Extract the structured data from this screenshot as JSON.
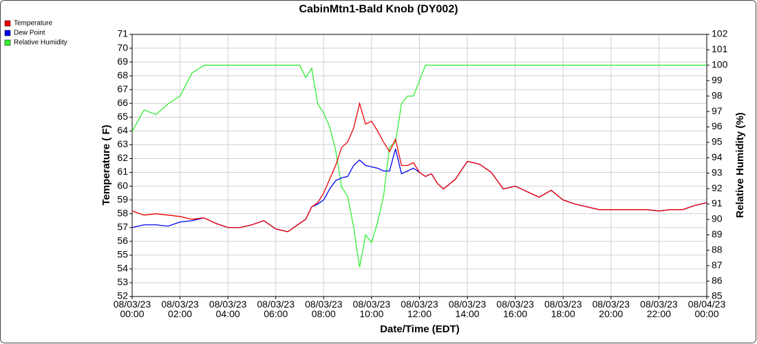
{
  "chart_data": {
    "type": "line",
    "title": "CabinMtn1-Bald Knob (DY002)",
    "x_label": "Date/Time (EDT)",
    "y_label": "Temperature ( F)",
    "y2_label": "Relative Humidity (%)",
    "x": [
      0,
      0.5,
      1,
      1.5,
      2,
      2.5,
      3,
      3.5,
      4,
      4.5,
      5,
      5.5,
      6,
      6.5,
      7,
      7.25,
      7.5,
      7.75,
      8,
      8.25,
      8.5,
      8.75,
      9,
      9.25,
      9.5,
      9.75,
      10,
      10.25,
      10.5,
      10.75,
      11,
      11.25,
      11.5,
      11.75,
      12,
      12.25,
      12.5,
      12.75,
      13,
      13.5,
      14,
      14.5,
      15,
      15.5,
      16,
      16.5,
      17,
      17.5,
      18,
      18.5,
      19,
      19.5,
      20,
      20.5,
      21,
      21.5,
      22,
      22.5,
      23,
      23.5,
      24
    ],
    "xlim": [
      0,
      24
    ],
    "xticks": [
      {
        "value": 0,
        "label": "08/03/23\n00:00"
      },
      {
        "value": 2,
        "label": "08/03/23\n02:00"
      },
      {
        "value": 4,
        "label": "08/03/23\n04:00"
      },
      {
        "value": 6,
        "label": "08/03/23\n06:00"
      },
      {
        "value": 8,
        "label": "08/03/23\n08:00"
      },
      {
        "value": 10,
        "label": "08/03/23\n10:00"
      },
      {
        "value": 12,
        "label": "08/03/23\n12:00"
      },
      {
        "value": 14,
        "label": "08/03/23\n14:00"
      },
      {
        "value": 16,
        "label": "08/03/23\n16:00"
      },
      {
        "value": 18,
        "label": "08/03/23\n18:00"
      },
      {
        "value": 20,
        "label": "08/03/23\n20:00"
      },
      {
        "value": 22,
        "label": "08/03/23\n22:00"
      },
      {
        "value": 24,
        "label": "08/04/23\n00:00"
      }
    ],
    "ylim": [
      52,
      71
    ],
    "yticks": [
      52,
      53,
      54,
      55,
      56,
      57,
      58,
      59,
      60,
      61,
      62,
      63,
      64,
      65,
      66,
      67,
      68,
      69,
      70,
      71
    ],
    "y2lim": [
      85,
      102
    ],
    "y2ticks": [
      85,
      86,
      87,
      88,
      89,
      90,
      91,
      92,
      93,
      94,
      95,
      96,
      97,
      98,
      99,
      100,
      101,
      102
    ],
    "grid": true,
    "legend": "top-left",
    "series": [
      {
        "name": "Relative Humidity",
        "color": "#33ee33",
        "axis": "y2",
        "values": [
          95.7,
          97.1,
          96.8,
          97.5,
          98.0,
          99.5,
          100,
          100,
          100,
          100,
          100,
          100,
          100,
          100,
          100,
          99.2,
          99.8,
          97.5,
          96.9,
          96.0,
          94.5,
          92.1,
          91.5,
          89.5,
          86.9,
          89.0,
          88.5,
          89.8,
          91.5,
          94.7,
          95.0,
          97.5,
          98.0,
          98.0,
          99.0,
          100,
          100,
          100,
          100,
          100,
          100,
          100,
          100,
          100,
          100,
          100,
          100,
          100,
          100,
          100,
          100,
          100,
          100,
          100,
          100,
          100,
          100,
          100,
          100,
          100,
          100
        ]
      },
      {
        "name": "Dew Point",
        "color": "#0000ee",
        "values": [
          57.0,
          57.2,
          57.2,
          57.1,
          57.4,
          57.5,
          57.7,
          57.3,
          57.0,
          57.0,
          57.2,
          57.5,
          56.9,
          56.7,
          57.3,
          57.6,
          58.5,
          58.7,
          59.0,
          59.8,
          60.4,
          60.6,
          60.7,
          61.5,
          61.9,
          61.5,
          61.4,
          61.3,
          61.1,
          61.1,
          62.7,
          60.9,
          61.1,
          61.3,
          61.0,
          60.7,
          60.9,
          60.2,
          59.8,
          60.5,
          61.8,
          61.6,
          61.0,
          59.8,
          60.0,
          59.6,
          59.2,
          59.7,
          59.0,
          58.7,
          58.5,
          58.3,
          58.3,
          58.3,
          58.3,
          58.3,
          58.2,
          58.3,
          58.3,
          58.6,
          58.8
        ]
      },
      {
        "name": "Temperature",
        "color": "#ee0000",
        "values": [
          58.2,
          57.9,
          58.0,
          57.9,
          57.8,
          57.6,
          57.7,
          57.3,
          57.0,
          57.0,
          57.2,
          57.5,
          56.9,
          56.7,
          57.3,
          57.6,
          58.5,
          58.8,
          59.5,
          60.5,
          61.5,
          62.8,
          63.2,
          64.2,
          66.0,
          64.5,
          64.7,
          64.0,
          63.2,
          62.5,
          63.4,
          61.5,
          61.5,
          61.7,
          61.0,
          60.7,
          60.9,
          60.2,
          59.8,
          60.5,
          61.8,
          61.6,
          61.0,
          59.8,
          60.0,
          59.6,
          59.2,
          59.7,
          59.0,
          58.7,
          58.5,
          58.3,
          58.3,
          58.3,
          58.3,
          58.3,
          58.2,
          58.3,
          58.3,
          58.6,
          58.8
        ]
      }
    ]
  }
}
